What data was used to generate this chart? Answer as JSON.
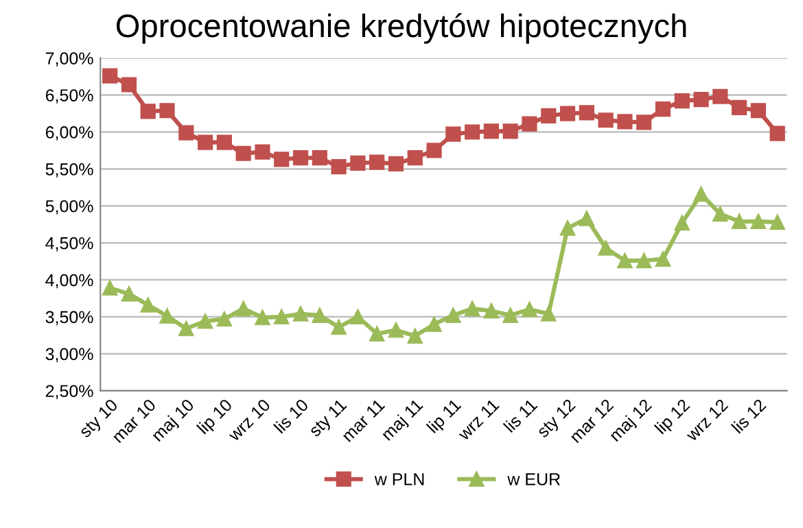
{
  "chart_data": {
    "type": "line",
    "title": "Oprocentowanie kredytów hipotecznych",
    "categories": [
      "sty 10",
      null,
      "mar 10",
      null,
      "maj 10",
      null,
      "lip 10",
      null,
      "wrz 10",
      null,
      "lis 10",
      null,
      "sty 11",
      null,
      "mar 11",
      null,
      "maj 11",
      null,
      "lip 11",
      null,
      "wrz 11",
      null,
      "lis 11",
      null,
      "sty 12",
      null,
      "mar 12",
      null,
      "maj 12",
      null,
      "lip 12",
      null,
      "wrz 12",
      null,
      "lis 12",
      null
    ],
    "series": [
      {
        "name": "w PLN",
        "color": "#c0504d",
        "marker": "square",
        "values": [
          6.76,
          6.64,
          6.28,
          6.29,
          5.99,
          5.86,
          5.86,
          5.71,
          5.73,
          5.63,
          5.65,
          5.65,
          5.53,
          5.58,
          5.59,
          5.57,
          5.65,
          5.75,
          5.97,
          6.0,
          6.01,
          6.01,
          6.11,
          6.22,
          6.25,
          6.26,
          6.16,
          6.14,
          6.13,
          6.31,
          6.42,
          6.44,
          6.48,
          6.33,
          6.29,
          5.98
        ]
      },
      {
        "name": "w EUR",
        "color": "#9bbb59",
        "marker": "triangle",
        "values": [
          3.89,
          3.81,
          3.66,
          3.51,
          3.34,
          3.44,
          3.47,
          3.61,
          3.49,
          3.5,
          3.54,
          3.52,
          3.36,
          3.5,
          3.27,
          3.32,
          3.24,
          3.4,
          3.52,
          3.61,
          3.58,
          3.52,
          3.6,
          3.54,
          4.7,
          4.83,
          4.43,
          4.26,
          4.26,
          4.28,
          4.77,
          5.16,
          4.89,
          4.79,
          4.79,
          4.78
        ]
      }
    ],
    "ylim": [
      2.5,
      7.0
    ],
    "yticks": [
      {
        "value": 2.5,
        "label": "2,50%"
      },
      {
        "value": 3.0,
        "label": "3,00%"
      },
      {
        "value": 3.5,
        "label": "3,50%"
      },
      {
        "value": 4.0,
        "label": "4,00%"
      },
      {
        "value": 4.5,
        "label": "4,50%"
      },
      {
        "value": 5.0,
        "label": "5,00%"
      },
      {
        "value": 5.5,
        "label": "5,50%"
      },
      {
        "value": 6.0,
        "label": "6,00%"
      },
      {
        "value": 6.5,
        "label": "6,50%"
      },
      {
        "value": 7.0,
        "label": "7,00%"
      }
    ],
    "grid": "y",
    "legend": "bottom",
    "line_style": "solid"
  }
}
